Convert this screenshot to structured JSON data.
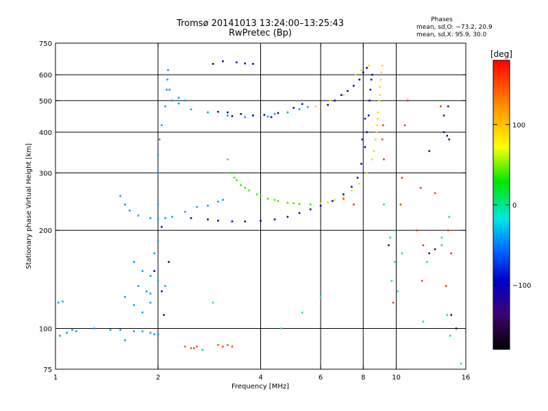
{
  "chart_data": {
    "type": "scatter",
    "title": "Tromsø 20141013 13:24:00–13:25:43",
    "subtitle": "RwPretec (Bp)",
    "xlabel": "Frequency [MHz]",
    "ylabel": "Stationary phase Virtual Height [km]",
    "x_scale": "log2",
    "y_scale": "log",
    "xlim": [
      1,
      16
    ],
    "ylim": [
      75,
      750
    ],
    "x_ticks": [
      1,
      2,
      4,
      6,
      8,
      10,
      16
    ],
    "x_tick_labels": [
      "1",
      "2",
      "4",
      "6",
      "8",
      "10",
      "16"
    ],
    "y_ticks": [
      75,
      100,
      200,
      300,
      400,
      500,
      600,
      750
    ],
    "y_tick_labels": [
      "75",
      "100",
      "200",
      "300",
      "400",
      "500",
      "600",
      "750"
    ],
    "grid_x": [
      2,
      4,
      6,
      8,
      10
    ],
    "grid_y": [
      100,
      200,
      300,
      400,
      500,
      600
    ],
    "grid": true,
    "phase_stats": {
      "heading": "Phases",
      "line_o": "mean, sd,O:  −73.2,  20.9",
      "line_x": "mean, sd,X:   95.9,  30.0"
    },
    "colorbar": {
      "label": "[deg]",
      "range": [
        -180,
        180
      ],
      "ticks": [
        100,
        0,
        -100
      ],
      "tick_labels": [
        "100",
        "0",
        "−100"
      ],
      "colormap": "rainbow"
    },
    "series": [
      {
        "phase": -40,
        "points": [
          [
            1.02,
            120
          ],
          [
            1.05,
            121
          ],
          [
            1.03,
            95
          ],
          [
            1.08,
            97
          ],
          [
            1.12,
            99
          ],
          [
            1.15,
            98
          ],
          [
            1.3,
            100
          ],
          [
            1.45,
            99
          ],
          [
            1.55,
            99
          ],
          [
            1.6,
            92
          ],
          [
            1.7,
            98
          ],
          [
            1.8,
            98
          ],
          [
            1.9,
            97
          ],
          [
            1.95,
            96
          ],
          [
            2.0,
            96
          ],
          [
            1.55,
            255
          ],
          [
            1.6,
            240
          ],
          [
            1.65,
            230
          ],
          [
            1.75,
            222
          ],
          [
            1.9,
            218
          ],
          [
            2.0,
            217
          ],
          [
            2.1,
            218
          ],
          [
            2.2,
            220
          ],
          [
            2.4,
            228
          ],
          [
            2.6,
            236
          ],
          [
            2.8,
            238
          ],
          [
            3.0,
            245
          ],
          [
            3.1,
            248
          ],
          [
            2.0,
            240
          ],
          [
            2.0,
            300
          ],
          [
            2.0,
            340
          ],
          [
            2.02,
            380
          ],
          [
            2.05,
            420
          ],
          [
            2.1,
            480
          ],
          [
            2.12,
            540
          ],
          [
            2.13,
            580
          ],
          [
            2.14,
            620
          ],
          [
            2.16,
            540
          ],
          [
            2.2,
            500
          ],
          [
            2.3,
            490
          ],
          [
            2.5,
            470
          ],
          [
            2.8,
            460
          ],
          [
            3.2,
            450
          ],
          [
            3.6,
            445
          ],
          [
            4.2,
            447
          ],
          [
            4.8,
            460
          ],
          [
            5.2,
            470
          ],
          [
            5.5,
            478
          ],
          [
            2.3,
            510
          ],
          [
            2.4,
            500
          ],
          [
            3.8,
            450
          ],
          [
            4.4,
            455
          ],
          [
            1.7,
            160
          ],
          [
            1.8,
            150
          ],
          [
            1.9,
            145
          ],
          [
            2.0,
            140
          ],
          [
            1.75,
            135
          ],
          [
            1.85,
            130
          ],
          [
            1.6,
            125
          ],
          [
            1.95,
            170
          ],
          [
            1.8,
            112
          ],
          [
            1.7,
            118
          ],
          [
            2.0,
            185
          ],
          [
            1.9,
            128
          ],
          [
            2.1,
            135
          ],
          [
            1.9,
            120
          ]
        ]
      },
      {
        "phase": -100,
        "points": [
          [
            2.5,
            218
          ],
          [
            2.8,
            216
          ],
          [
            3.0,
            214
          ],
          [
            3.3,
            213
          ],
          [
            3.6,
            213
          ],
          [
            4.0,
            214
          ],
          [
            4.4,
            216
          ],
          [
            4.8,
            220
          ],
          [
            5.2,
            226
          ],
          [
            5.6,
            232
          ],
          [
            6.0,
            238
          ],
          [
            6.5,
            246
          ],
          [
            7.0,
            258
          ],
          [
            7.4,
            272
          ],
          [
            7.7,
            290
          ],
          [
            7.9,
            320
          ],
          [
            8.1,
            360
          ],
          [
            8.2,
            400
          ],
          [
            8.3,
            450
          ],
          [
            8.35,
            500
          ],
          [
            8.4,
            540
          ],
          [
            8.45,
            580
          ],
          [
            8.5,
            600
          ],
          [
            8.1,
            440
          ],
          [
            7.95,
            380
          ],
          [
            3.2,
            460
          ],
          [
            3.5,
            455
          ],
          [
            3.8,
            450
          ],
          [
            4.1,
            452
          ],
          [
            4.3,
            445
          ],
          [
            3.0,
            462
          ],
          [
            3.3,
            448
          ],
          [
            4.5,
            458
          ],
          [
            3.1,
            660
          ],
          [
            3.4,
            655
          ],
          [
            3.6,
            650
          ],
          [
            3.8,
            648
          ],
          [
            2.9,
            648
          ],
          [
            6.3,
            485
          ],
          [
            6.6,
            500
          ],
          [
            6.9,
            520
          ],
          [
            7.2,
            535
          ],
          [
            7.5,
            555
          ],
          [
            7.8,
            580
          ],
          [
            8.0,
            610
          ],
          [
            8.2,
            630
          ],
          [
            5.0,
            475
          ],
          [
            5.3,
            488
          ],
          [
            2.05,
            130
          ],
          [
            2.08,
            110
          ],
          [
            2.15,
            160
          ],
          [
            2.05,
            205
          ],
          [
            1.95,
            150
          ]
        ]
      },
      {
        "phase": 40,
        "points": [
          [
            3.2,
            330
          ],
          [
            3.3,
            300
          ],
          [
            3.4,
            285
          ],
          [
            3.5,
            275
          ],
          [
            3.7,
            265
          ],
          [
            3.9,
            258
          ],
          [
            4.2,
            250
          ],
          [
            4.5,
            246
          ],
          [
            4.8,
            243
          ],
          [
            5.2,
            241
          ],
          [
            5.6,
            240
          ],
          [
            3.6,
            270
          ],
          [
            4.0,
            255
          ],
          [
            4.4,
            248
          ],
          [
            5.0,
            242
          ],
          [
            3.35,
            290
          ]
        ]
      },
      {
        "phase": 150,
        "points": [
          [
            2.4,
            88
          ],
          [
            2.5,
            87
          ],
          [
            2.6,
            88
          ],
          [
            3.0,
            89
          ],
          [
            3.1,
            88
          ],
          [
            3.2,
            89
          ],
          [
            3.3,
            88
          ],
          [
            2.55,
            87
          ]
        ]
      },
      {
        "phase": 90,
        "points": [
          [
            6.0,
            242
          ],
          [
            6.3,
            244
          ],
          [
            6.6,
            248
          ],
          [
            7.0,
            255
          ],
          [
            7.4,
            265
          ],
          [
            7.8,
            278
          ],
          [
            8.2,
            300
          ],
          [
            8.5,
            330
          ],
          [
            8.7,
            380
          ],
          [
            8.8,
            420
          ],
          [
            8.85,
            460
          ],
          [
            8.9,
            500
          ],
          [
            8.95,
            550
          ],
          [
            9.0,
            580
          ],
          [
            9.05,
            610
          ],
          [
            9.1,
            640
          ],
          [
            8.6,
            350
          ],
          [
            8.75,
            400
          ],
          [
            8.82,
            440
          ],
          [
            8.95,
            520
          ],
          [
            7.6,
            600
          ],
          [
            7.9,
            620
          ],
          [
            8.3,
            640
          ],
          [
            5.8,
            480
          ],
          [
            6.4,
            500
          ],
          [
            7.0,
            520
          ]
        ]
      },
      {
        "phase": 160,
        "points": [
          [
            9.2,
            330
          ],
          [
            9.1,
            380
          ],
          [
            9.15,
            420
          ],
          [
            10.4,
            290
          ],
          [
            10.6,
            420
          ],
          [
            11.8,
            270
          ],
          [
            13.0,
            260
          ],
          [
            14.2,
            200
          ],
          [
            14.5,
            170
          ],
          [
            12.0,
            180
          ],
          [
            11.5,
            200
          ],
          [
            7.0,
            250
          ],
          [
            7.5,
            240
          ],
          [
            10.3,
            240
          ],
          [
            13.5,
            480
          ],
          [
            10.8,
            500
          ],
          [
            9.8,
            120
          ],
          [
            11.9,
            140
          ],
          [
            14.0,
            135
          ]
        ]
      },
      {
        "phase": -10,
        "points": [
          [
            2.9,
            120
          ],
          [
            4.6,
            100
          ],
          [
            5.3,
            112
          ],
          [
            6.0,
            125
          ],
          [
            9.7,
            140
          ],
          [
            9.9,
            160
          ],
          [
            10.4,
            170
          ],
          [
            12.3,
            160
          ],
          [
            13.6,
            190
          ],
          [
            14.3,
            220
          ],
          [
            14.1,
            110
          ],
          [
            14.4,
            95
          ],
          [
            10.1,
            130
          ],
          [
            12.0,
            105
          ],
          [
            9.9,
            200
          ],
          [
            15.5,
            78
          ]
        ]
      },
      {
        "phase": -140,
        "points": [
          [
            12.5,
            170
          ],
          [
            13.0,
            175
          ],
          [
            14.5,
            110
          ],
          [
            15.0,
            100
          ],
          [
            13.8,
            400
          ],
          [
            14.1,
            390
          ],
          [
            14.3,
            380
          ],
          [
            12.5,
            350
          ],
          [
            9.5,
            180
          ],
          [
            13.8,
            450
          ],
          [
            14.2,
            480
          ]
        ]
      },
      {
        "phase": 0,
        "points": [
          [
            2.7,
            86
          ],
          [
            9.6,
            190
          ],
          [
            13.6,
            180
          ],
          [
            9.2,
            240
          ]
        ]
      }
    ]
  }
}
